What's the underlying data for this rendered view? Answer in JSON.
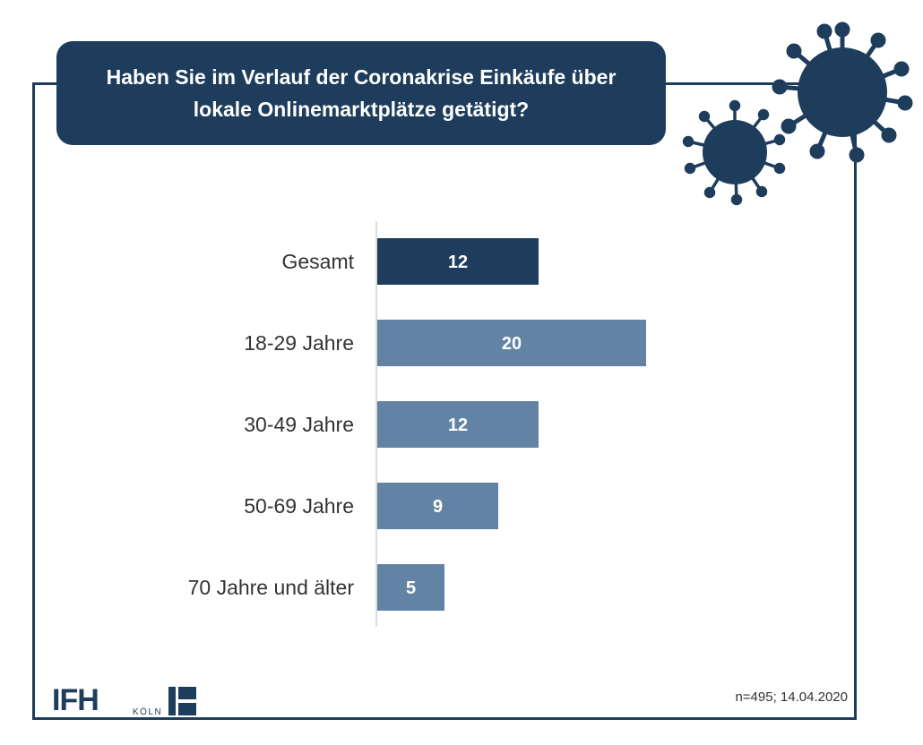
{
  "title": "Haben Sie im Verlauf der Coronakrise Einkäufe über lokale Onlinemarktplätze getätigt?",
  "footnote": "n=495; 14.04.2020",
  "logo": {
    "main": "IFH",
    "sub": "KÖLN"
  },
  "colors": {
    "primary": "#1e3d5c",
    "secondary_bar": "#6383a5",
    "axis": "#cfcfcf"
  },
  "icons": [
    "virus-icon-large",
    "virus-icon-small"
  ],
  "chart_data": {
    "type": "bar",
    "orientation": "horizontal",
    "categories": [
      "Gesamt",
      "18-29 Jahre",
      "30-49 Jahre",
      "50-69 Jahre",
      "70 Jahre und älter"
    ],
    "values": [
      12,
      20,
      12,
      9,
      5
    ],
    "highlight": "Gesamt",
    "title": "Haben Sie im Verlauf der Coronakrise Einkäufe über lokale Onlinemarktplätze getätigt?",
    "xlabel": "",
    "ylabel": "",
    "xlim": [
      0,
      25
    ],
    "grid": false,
    "data_labels": true
  }
}
